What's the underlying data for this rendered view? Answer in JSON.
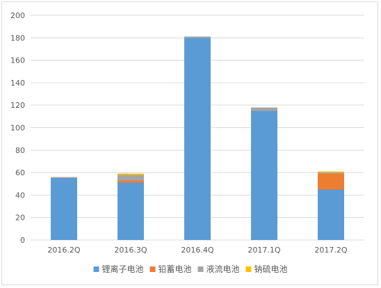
{
  "chart_data": {
    "type": "bar",
    "stacked": true,
    "title": "",
    "xlabel": "",
    "ylabel": "",
    "categories": [
      "2016.2Q",
      "2016.3Q",
      "2016.4Q",
      "2017.1Q",
      "2017.2Q"
    ],
    "ylim": [
      0,
      200
    ],
    "yticks": [
      0,
      20,
      40,
      60,
      80,
      100,
      120,
      140,
      160,
      180,
      200
    ],
    "grid": true,
    "legend_position": "bottom",
    "series": [
      {
        "name": "锂离子电池",
        "color": "#5b9bd5",
        "values": [
          55,
          51,
          180,
          115,
          45
        ]
      },
      {
        "name": "铅蓄电池",
        "color": "#ed7d31",
        "values": [
          0,
          2,
          0,
          0,
          14
        ]
      },
      {
        "name": "液流电池",
        "color": "#a5a5a5",
        "values": [
          1,
          5,
          1,
          3,
          1
        ]
      },
      {
        "name": "钠硫电池",
        "color": "#ffc000",
        "values": [
          0,
          1,
          0,
          0,
          1
        ]
      }
    ]
  }
}
